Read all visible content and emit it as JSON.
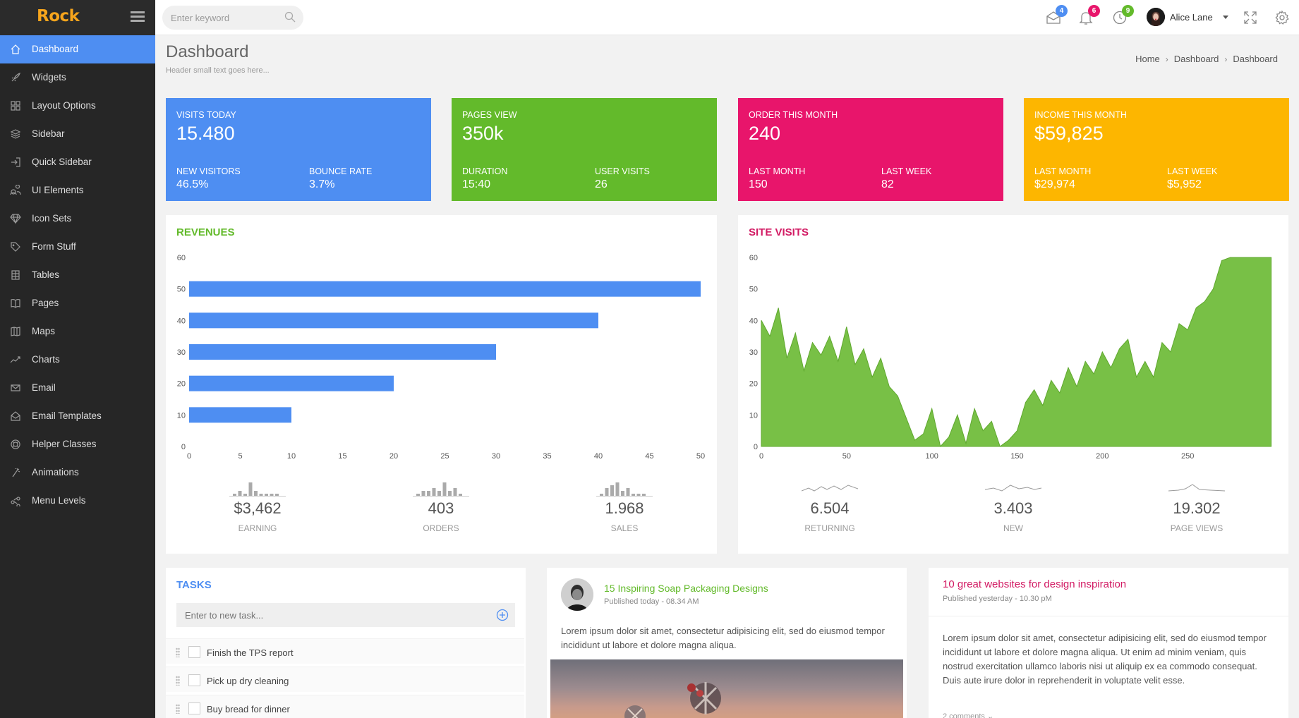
{
  "app": {
    "brand": "Rock"
  },
  "sidebar": {
    "items": [
      {
        "label": "Dashboard",
        "icon": "home-icon",
        "active": true
      },
      {
        "label": "Widgets",
        "icon": "rocket-icon"
      },
      {
        "label": "Layout Options",
        "icon": "grid-icon"
      },
      {
        "label": "Sidebar",
        "icon": "layers-icon"
      },
      {
        "label": "Quick Sidebar",
        "icon": "sign-in-icon"
      },
      {
        "label": "UI Elements",
        "icon": "users-icon"
      },
      {
        "label": "Icon Sets",
        "icon": "diamond-icon"
      },
      {
        "label": "Form Stuff",
        "icon": "tag-icon"
      },
      {
        "label": "Tables",
        "icon": "table-icon"
      },
      {
        "label": "Pages",
        "icon": "book-icon"
      },
      {
        "label": "Maps",
        "icon": "map-icon"
      },
      {
        "label": "Charts",
        "icon": "trend-icon"
      },
      {
        "label": "Email",
        "icon": "envelope-icon"
      },
      {
        "label": "Email Templates",
        "icon": "envelope-open-icon"
      },
      {
        "label": "Helper Classes",
        "icon": "lifebuoy-icon"
      },
      {
        "label": "Animations",
        "icon": "magic-icon"
      },
      {
        "label": "Menu Levels",
        "icon": "share-icon"
      }
    ]
  },
  "topbar": {
    "search_placeholder": "Enter keyword",
    "messages_count": "4",
    "notifications_count": "6",
    "tasks_count": "9",
    "user_name": "Alice Lane"
  },
  "header": {
    "title": "Dashboard",
    "subtitle": "Header small text goes here...",
    "breadcrumb": [
      "Home",
      "Dashboard",
      "Dashboard"
    ]
  },
  "stats": [
    {
      "title": "VISITS TODAY",
      "value": "15.480",
      "l1": "NEW VISITORS",
      "v1": "46.5%",
      "l2": "BOUNCE RATE",
      "v2": "3.7%",
      "color": "#4e8ef2"
    },
    {
      "title": "PAGES VIEW",
      "value": "350k",
      "l1": "DURATION",
      "v1": "15:40",
      "l2": "USER VISITS",
      "v2": "26",
      "color": "#63ba2b"
    },
    {
      "title": "ORDER THIS MONTH",
      "value": "240",
      "l1": "LAST MONTH",
      "v1": "150",
      "l2": "LAST WEEK",
      "v2": "82",
      "color": "#e8156b"
    },
    {
      "title": "INCOME THIS MONTH",
      "value": "$59,825",
      "l1": "LAST MONTH",
      "v1": "$29,974",
      "l2": "LAST WEEK",
      "v2": "$5,952",
      "color": "#fdb600"
    }
  ],
  "revenues": {
    "title": "REVENUES",
    "title_color": "#63ba2b",
    "mini": [
      {
        "value": "$3,462",
        "label": "EARNING"
      },
      {
        "value": "403",
        "label": "ORDERS"
      },
      {
        "value": "1.968",
        "label": "SALES"
      }
    ]
  },
  "site_visits": {
    "title": "SITE VISITS",
    "title_color": "#d21a63",
    "mini": [
      {
        "value": "6.504",
        "label": "RETURNING"
      },
      {
        "value": "3.403",
        "label": "NEW"
      },
      {
        "value": "19.302",
        "label": "PAGE VIEWS"
      }
    ]
  },
  "chart_data": [
    {
      "type": "bar",
      "orientation": "horizontal",
      "values": [
        50,
        40,
        30,
        20,
        10
      ],
      "positions": [
        50,
        40,
        30,
        20,
        10
      ],
      "xlim": [
        0,
        50
      ],
      "ylim": [
        0,
        60
      ],
      "xticks": [
        "0",
        "5",
        "10",
        "15",
        "20",
        "25",
        "30",
        "35",
        "40",
        "45",
        "50"
      ],
      "yticks": [
        "0",
        "10",
        "20",
        "30",
        "40",
        "50",
        "60"
      ],
      "color": "#4e8ef2"
    },
    {
      "type": "area",
      "x": [
        0,
        5,
        10,
        15,
        20,
        25,
        30,
        35,
        40,
        45,
        50,
        55,
        60,
        65,
        70,
        75,
        80,
        85,
        90,
        95,
        100,
        105,
        110,
        115,
        120,
        125,
        130,
        135,
        140,
        145,
        150,
        155,
        160,
        165,
        170,
        175,
        180,
        185,
        190,
        195,
        200,
        205,
        210,
        215,
        220,
        225,
        230,
        235,
        240,
        245,
        250,
        255,
        260,
        265,
        270,
        275,
        280,
        285,
        290,
        299
      ],
      "y": [
        40,
        35,
        44,
        28,
        36,
        24,
        33,
        29,
        35,
        27,
        38,
        26,
        31,
        22,
        28,
        19,
        16,
        9,
        2,
        4,
        12,
        0,
        3,
        10,
        1,
        12,
        5,
        8,
        0,
        2,
        5,
        14,
        18,
        13,
        21,
        17,
        25,
        19,
        27,
        23,
        30,
        25,
        31,
        34,
        22,
        27,
        22,
        33,
        30,
        39,
        37,
        44,
        46,
        50,
        59,
        60,
        60,
        60,
        60,
        60
      ],
      "xlim": [
        0,
        300
      ],
      "ylim": [
        0,
        60
      ],
      "xticks": [
        "0",
        "50",
        "100",
        "150",
        "200",
        "250"
      ],
      "yticks": [
        "0",
        "10",
        "20",
        "30",
        "40",
        "50",
        "60"
      ],
      "color": "#78c046"
    }
  ],
  "tasks": {
    "title": "TASKS",
    "input_placeholder": "Enter to new task...",
    "items": [
      "Finish the TPS report",
      "Pick up dry cleaning",
      "Buy bread for dinner"
    ]
  },
  "post1": {
    "title": "15 Inspiring Soap Packaging Designs",
    "meta": "Published today - 08.34 AM",
    "text": "Lorem ipsum dolor sit amet, consectetur adipisicing elit, sed do eiusmod tempor incididunt ut labore et dolore magna aliqua."
  },
  "post2": {
    "title": "10 great websites for design inspiration",
    "meta": "Published yesterday - 10.30 pM",
    "text": "Lorem ipsum dolor sit amet, consectetur adipisicing elit, sed do eiusmod tempor incididunt ut labore et dolore magna aliqua. Ut enim ad minim veniam, quis nostrud exercitation ullamco laboris nisi ut aliquip ex ea commodo consequat. Duis aute irure dolor in reprehenderit in voluptate velit esse.",
    "comments": "2 comments"
  }
}
